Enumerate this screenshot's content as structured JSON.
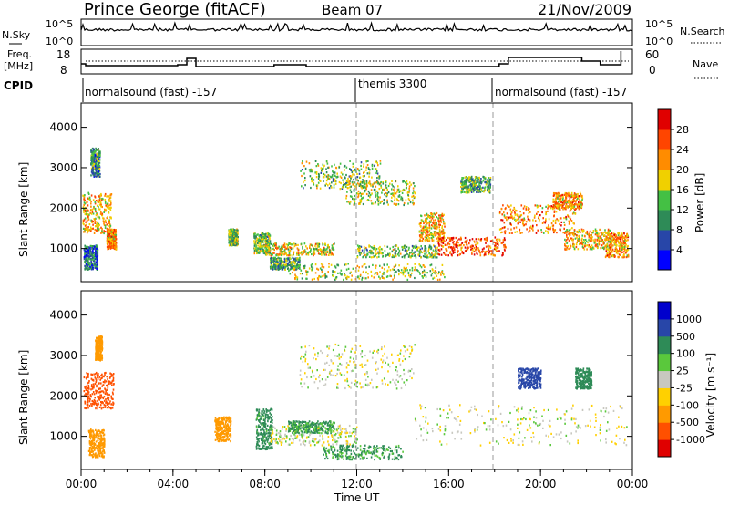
{
  "header": {
    "station": "Prince George (fitACF)",
    "beam": "Beam 07",
    "date": "21/Nov/2009"
  },
  "noise_panel": {
    "left_label": "N.Sky",
    "right_label": "N.Search",
    "left_ticks": [
      "10^5",
      "10^0"
    ],
    "right_ticks": [
      "10^5",
      "10^0"
    ]
  },
  "freq_panel": {
    "left_label_1": "Freq.",
    "left_label_2": "[MHz]",
    "left_ticks": [
      "18",
      "8"
    ],
    "right_label": "Nave",
    "right_ticks": [
      "60",
      "0"
    ]
  },
  "cpid_panel": {
    "label": "CPID",
    "segments": [
      {
        "name": "normalsound (fast) -157",
        "start_hour": 0
      },
      {
        "name": "themis 3300",
        "start_hour": 12
      },
      {
        "name": "normalsound (fast) -157",
        "start_hour": 18
      }
    ]
  },
  "power_panel": {
    "ylabel": "Slant Range [km]",
    "yticks": [
      "1000",
      "2000",
      "3000",
      "4000"
    ],
    "colorbar_label": "Power [dB]",
    "colorbar_ticks": [
      "4",
      "8",
      "12",
      "16",
      "20",
      "24",
      "28"
    ],
    "colorbar_colors": [
      "#0000ff",
      "#2846a8",
      "#2e8b57",
      "#44c044",
      "#f0d000",
      "#ff8c00",
      "#ff4500",
      "#e00000"
    ]
  },
  "velocity_panel": {
    "ylabel": "Slant Range [km]",
    "yticks": [
      "1000",
      "2000",
      "3000",
      "4000"
    ],
    "colorbar_label": "Velocity [m s⁻¹]",
    "colorbar_ticks": [
      "-1000",
      "-500",
      "-100",
      "-25",
      "25",
      "100",
      "500",
      "1000"
    ],
    "colorbar_colors": [
      "#e00000",
      "#ff5000",
      "#ff9a00",
      "#ffd000",
      "#c8c8c0",
      "#5ac83c",
      "#2e8b57",
      "#2846a8",
      "#0000cc"
    ]
  },
  "xaxis": {
    "label": "Time UT",
    "ticks": [
      "00:00",
      "04:00",
      "08:00",
      "12:00",
      "16:00",
      "20:00",
      "00:00"
    ]
  },
  "chart_data": {
    "type": "heatmap",
    "x_range_hours": [
      0,
      24
    ],
    "y_range_km": [
      180,
      4600
    ],
    "power_features": [
      {
        "t0": 0.05,
        "t1": 1.3,
        "r0": 1400,
        "r1": 2400,
        "level": 20
      },
      {
        "t0": 0.4,
        "t1": 0.8,
        "r0": 2800,
        "r1": 3500,
        "level": 10
      },
      {
        "t0": 1.1,
        "t1": 1.5,
        "r0": 1000,
        "r1": 1500,
        "level": 22
      },
      {
        "t0": 0.1,
        "t1": 0.7,
        "r0": 500,
        "r1": 1100,
        "level": 8
      },
      {
        "t0": 6.4,
        "t1": 6.8,
        "r0": 1100,
        "r1": 1500,
        "level": 14
      },
      {
        "t0": 7.5,
        "t1": 8.2,
        "r0": 900,
        "r1": 1400,
        "level": 14
      },
      {
        "t0": 8.0,
        "t1": 11.0,
        "r0": 850,
        "r1": 1150,
        "level": 18
      },
      {
        "t0": 8.2,
        "t1": 9.5,
        "r0": 500,
        "r1": 800,
        "level": 12
      },
      {
        "t0": 9.5,
        "t1": 13.0,
        "r0": 2500,
        "r1": 3200,
        "level": 14
      },
      {
        "t0": 11.5,
        "t1": 14.5,
        "r0": 2100,
        "r1": 2700,
        "level": 16
      },
      {
        "t0": 12.0,
        "t1": 15.5,
        "r0": 800,
        "r1": 1100,
        "level": 14
      },
      {
        "t0": 9.0,
        "t1": 15.8,
        "r0": 250,
        "r1": 650,
        "level": 16
      },
      {
        "t0": 14.7,
        "t1": 15.8,
        "r0": 1200,
        "r1": 1900,
        "level": 20
      },
      {
        "t0": 15.5,
        "t1": 18.5,
        "r0": 850,
        "r1": 1300,
        "level": 26
      },
      {
        "t0": 18.2,
        "t1": 21.5,
        "r0": 1400,
        "r1": 2100,
        "level": 22
      },
      {
        "t0": 21.0,
        "t1": 23.0,
        "r0": 1000,
        "r1": 1500,
        "level": 20
      },
      {
        "t0": 22.8,
        "t1": 23.8,
        "r0": 800,
        "r1": 1400,
        "level": 22
      },
      {
        "t0": 20.5,
        "t1": 21.8,
        "r0": 2000,
        "r1": 2400,
        "level": 22
      },
      {
        "t0": 16.5,
        "t1": 17.8,
        "r0": 2400,
        "r1": 2800,
        "level": 12
      }
    ],
    "velocity_features": [
      {
        "t0": 0.1,
        "t1": 1.4,
        "r0": 1700,
        "r1": 2600,
        "vel": -800
      },
      {
        "t0": 0.3,
        "t1": 1.0,
        "r0": 500,
        "r1": 1200,
        "vel": -300
      },
      {
        "t0": 0.6,
        "t1": 0.9,
        "r0": 2900,
        "r1": 3500,
        "vel": -200
      },
      {
        "t0": 5.8,
        "t1": 6.5,
        "r0": 900,
        "r1": 1500,
        "vel": -300
      },
      {
        "t0": 7.6,
        "t1": 8.3,
        "r0": 700,
        "r1": 1700,
        "vel": 150
      },
      {
        "t0": 8.2,
        "t1": 12.0,
        "r0": 800,
        "r1": 1300,
        "vel": 0
      },
      {
        "t0": 9.0,
        "t1": 11.0,
        "r0": 1100,
        "r1": 1400,
        "vel": 120
      },
      {
        "t0": 10.5,
        "t1": 14.0,
        "r0": 450,
        "r1": 800,
        "vel": 120
      },
      {
        "t0": 9.5,
        "t1": 14.5,
        "r0": 2200,
        "r1": 3300,
        "vel": 0
      },
      {
        "t0": 14.5,
        "t1": 23.8,
        "r0": 800,
        "r1": 1800,
        "vel": 0
      },
      {
        "t0": 19.0,
        "t1": 20.0,
        "r0": 2200,
        "r1": 2700,
        "vel": 600
      },
      {
        "t0": 21.5,
        "t1": 22.2,
        "r0": 2200,
        "r1": 2700,
        "vel": 300
      }
    ]
  }
}
